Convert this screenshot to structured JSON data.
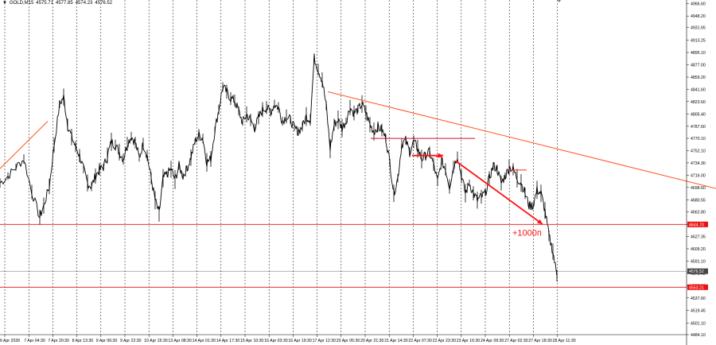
{
  "header": {
    "symbol": "GOLD,M15",
    "open": "4575.71",
    "high": "4577.85",
    "low": "4574.23",
    "close": "4576.52"
  },
  "chart_data": {
    "type": "candlestick",
    "symbol": "GOLD,M15",
    "ylim": [
      4484.1,
      4968.1
    ],
    "y_ticks": [
      "4966.60",
      "4948.20",
      "4931.65",
      "4913.25",
      "4895.10",
      "4877.00",
      "4859.20",
      "4841.60",
      "4823.60",
      "4805.40",
      "4787.60",
      "4770.10",
      "4752.10",
      "4734.30",
      "4716.00",
      "4698.60",
      "4680.55",
      "4662.80",
      "4644.70",
      "4627.35",
      "4609.20",
      "4591.10",
      "4573.40",
      "4555.25",
      "4537.60",
      "4519.45",
      "4501.10",
      "4484.10"
    ],
    "x_labels": [
      "6 Apr 2026",
      "7 Apr 04:30",
      "7 Apr 20:30",
      "8 Apr 13:30",
      "9 Apr 06:30",
      "9 Apr 22:30",
      "10 Apr 15:30",
      "13 Apr 08:30",
      "14 Apr 01:30",
      "14 Apr 17:30",
      "15 Apr 10:30",
      "16 Apr 03:30",
      "16 Apr 19:30",
      "17 Apr 12:30",
      "20 Apr 05:30",
      "20 Apr 21:30",
      "21 Apr 14:30",
      "22 Apr 07:30",
      "22 Apr 23:30",
      "23 Apr 16:30",
      "24 Apr 09:30",
      "27 Apr 02:30",
      "27 Apr 18:30",
      "28 Apr 11:30"
    ],
    "trend": [
      [
        0,
        4705
      ],
      [
        10,
        4715
      ],
      [
        20,
        4728
      ],
      [
        30,
        4740
      ],
      [
        40,
        4692
      ],
      [
        50,
        4655
      ],
      [
        55,
        4672
      ],
      [
        62,
        4700
      ],
      [
        68,
        4760
      ],
      [
        75,
        4820
      ],
      [
        80,
        4830
      ],
      [
        85,
        4790
      ],
      [
        90,
        4772
      ],
      [
        95,
        4758
      ],
      [
        100,
        4745
      ],
      [
        105,
        4725
      ],
      [
        110,
        4705
      ],
      [
        115,
        4700
      ],
      [
        120,
        4715
      ],
      [
        125,
        4725
      ],
      [
        130,
        4728
      ],
      [
        135,
        4745
      ],
      [
        140,
        4765
      ],
      [
        145,
        4760
      ],
      [
        150,
        4750
      ],
      [
        155,
        4740
      ],
      [
        160,
        4762
      ],
      [
        165,
        4773
      ],
      [
        170,
        4764
      ],
      [
        175,
        4742
      ],
      [
        180,
        4762
      ],
      [
        185,
        4745
      ],
      [
        190,
        4712
      ],
      [
        195,
        4680
      ],
      [
        200,
        4660
      ],
      [
        205,
        4712
      ],
      [
        210,
        4718
      ],
      [
        215,
        4725
      ],
      [
        220,
        4710
      ],
      [
        225,
        4730
      ],
      [
        230,
        4715
      ],
      [
        235,
        4726
      ],
      [
        240,
        4742
      ],
      [
        245,
        4765
      ],
      [
        250,
        4775
      ],
      [
        255,
        4770
      ],
      [
        260,
        4735
      ],
      [
        265,
        4740
      ],
      [
        270,
        4782
      ],
      [
        275,
        4812
      ],
      [
        280,
        4845
      ],
      [
        285,
        4838
      ],
      [
        290,
        4828
      ],
      [
        295,
        4825
      ],
      [
        300,
        4810
      ],
      [
        305,
        4793
      ],
      [
        310,
        4805
      ],
      [
        315,
        4797
      ],
      [
        320,
        4785
      ],
      [
        325,
        4800
      ],
      [
        330,
        4812
      ],
      [
        335,
        4815
      ],
      [
        340,
        4808
      ],
      [
        345,
        4820
      ],
      [
        350,
        4815
      ],
      [
        355,
        4795
      ],
      [
        360,
        4802
      ],
      [
        365,
        4797
      ],
      [
        370,
        4785
      ],
      [
        375,
        4780
      ],
      [
        380,
        4787
      ],
      [
        385,
        4802
      ],
      [
        390,
        4797
      ],
      [
        395,
        4887
      ],
      [
        400,
        4870
      ],
      [
        405,
        4855
      ],
      [
        410,
        4818
      ],
      [
        415,
        4755
      ],
      [
        420,
        4790
      ],
      [
        425,
        4797
      ],
      [
        430,
        4785
      ],
      [
        435,
        4795
      ],
      [
        440,
        4815
      ],
      [
        445,
        4807
      ],
      [
        450,
        4812
      ],
      [
        455,
        4820
      ],
      [
        460,
        4807
      ],
      [
        465,
        4790
      ],
      [
        470,
        4780
      ],
      [
        475,
        4787
      ],
      [
        480,
        4782
      ],
      [
        485,
        4770
      ],
      [
        490,
        4735
      ],
      [
        495,
        4690
      ],
      [
        500,
        4712
      ],
      [
        505,
        4762
      ],
      [
        510,
        4767
      ],
      [
        515,
        4750
      ],
      [
        520,
        4765
      ],
      [
        525,
        4755
      ],
      [
        530,
        4740
      ],
      [
        535,
        4745
      ],
      [
        540,
        4750
      ],
      [
        545,
        4732
      ],
      [
        550,
        4707
      ],
      [
        555,
        4737
      ],
      [
        560,
        4725
      ],
      [
        565,
        4700
      ],
      [
        570,
        4728
      ],
      [
        575,
        4745
      ],
      [
        580,
        4715
      ],
      [
        585,
        4690
      ],
      [
        590,
        4705
      ],
      [
        595,
        4690
      ],
      [
        600,
        4680
      ],
      [
        605,
        4685
      ],
      [
        610,
        4690
      ],
      [
        615,
        4712
      ],
      [
        620,
        4730
      ],
      [
        625,
        4725
      ],
      [
        630,
        4705
      ],
      [
        635,
        4715
      ],
      [
        640,
        4728
      ],
      [
        645,
        4725
      ],
      [
        650,
        4712
      ],
      [
        655,
        4705
      ],
      [
        660,
        4690
      ],
      [
        665,
        4672
      ],
      [
        670,
        4672
      ],
      [
        675,
        4695
      ],
      [
        680,
        4690
      ],
      [
        685,
        4665
      ],
      [
        690,
        4628
      ],
      [
        695,
        4605
      ],
      [
        700,
        4570
      ]
    ],
    "horizontal_levels": [
      {
        "price": 4644.7,
        "label": "4644.70",
        "color": "#ee1111"
      },
      {
        "price": 4553.21,
        "label": "4553.21",
        "color": "#ee1111"
      },
      {
        "price": 4576.52,
        "label": "4576.52",
        "color": "#444444"
      }
    ],
    "annotations": [
      {
        "kind": "trendline",
        "color": "#ff5522",
        "from": [
          0,
          4726
        ],
        "to": [
          60,
          4795
        ]
      },
      {
        "kind": "trendline",
        "color": "#ff5522",
        "from": [
          412,
          4838
        ],
        "to": [
          900,
          4697
        ]
      },
      {
        "kind": "segment",
        "color": "#cc1133",
        "from": [
          466,
          4770
        ],
        "to": [
          597,
          4770
        ]
      },
      {
        "kind": "segment",
        "color": "#ff2222",
        "from": [
          548,
          4743
        ],
        "to": [
          556,
          4743
        ]
      },
      {
        "kind": "segment",
        "color": "#ff2222",
        "from": [
          640,
          4724
        ],
        "to": [
          662,
          4724
        ]
      },
      {
        "kind": "arrow",
        "color": "#ff1111",
        "from": [
          518,
          4745
        ],
        "to": [
          557,
          4745
        ]
      },
      {
        "kind": "arrow",
        "color": "#ff1111",
        "from": [
          573,
          4737
        ],
        "to": [
          682,
          4645
        ]
      }
    ],
    "text_note": {
      "text": "+1000п",
      "price": 4632,
      "x": 644,
      "color": "#ff1111"
    }
  }
}
